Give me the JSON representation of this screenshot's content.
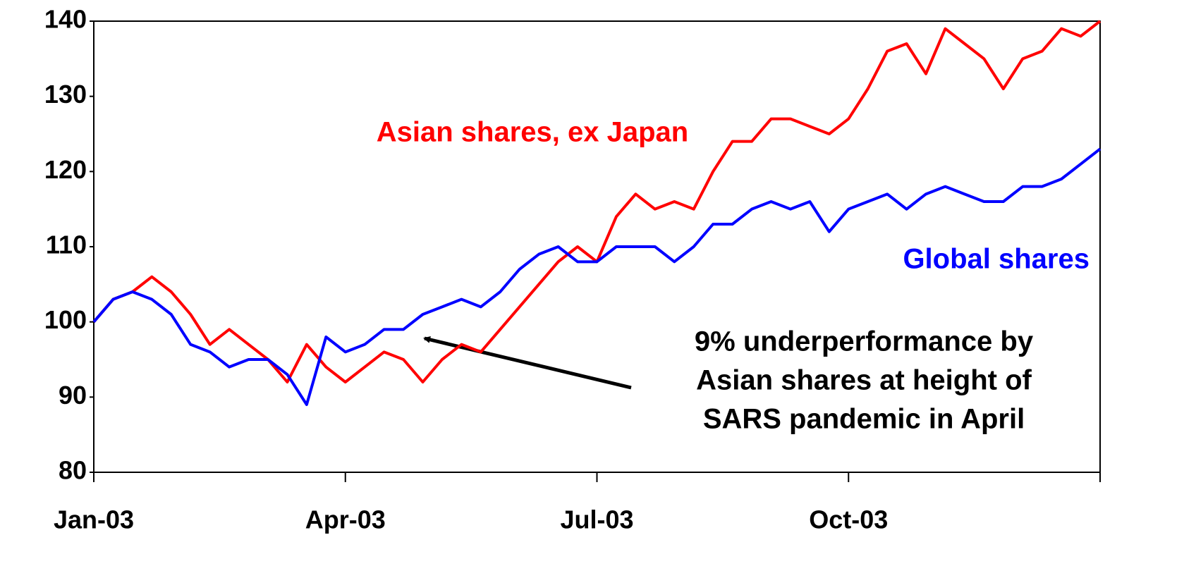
{
  "chart_data": {
    "type": "line",
    "categories": [
      "Jan-03",
      null,
      null,
      null,
      null,
      null,
      null,
      null,
      null,
      null,
      null,
      null,
      null,
      "Apr-03",
      null,
      null,
      null,
      null,
      null,
      null,
      null,
      null,
      null,
      null,
      null,
      null,
      "Jul-03",
      null,
      null,
      null,
      null,
      null,
      null,
      null,
      null,
      null,
      null,
      null,
      null,
      "Oct-03",
      null,
      null,
      null,
      null,
      null,
      null,
      null,
      null,
      null,
      null,
      null,
      null,
      null
    ],
    "series": [
      {
        "name": "Asian shares, ex Japan",
        "color": "#ff0000",
        "values": [
          100,
          103,
          104,
          106,
          104,
          101,
          97,
          99,
          97,
          95,
          92,
          97,
          94,
          92,
          94,
          96,
          95,
          92,
          95,
          97,
          96,
          99,
          102,
          105,
          108,
          110,
          108,
          114,
          117,
          115,
          116,
          115,
          120,
          124,
          124,
          127,
          127,
          126,
          125,
          127,
          131,
          136,
          137,
          133,
          139,
          137,
          135,
          131,
          135,
          136,
          139,
          138,
          140
        ]
      },
      {
        "name": "Global shares",
        "color": "#0000ff",
        "values": [
          100,
          103,
          104,
          103,
          101,
          97,
          96,
          94,
          95,
          95,
          93,
          89,
          98,
          96,
          97,
          99,
          99,
          101,
          102,
          103,
          102,
          104,
          107,
          109,
          110,
          108,
          108,
          110,
          110,
          110,
          108,
          110,
          113,
          113,
          115,
          116,
          115,
          116,
          112,
          115,
          116,
          117,
          115,
          117,
          118,
          117,
          116,
          116,
          118,
          118,
          119,
          121,
          123
        ]
      }
    ],
    "ylim": [
      80,
      140
    ],
    "yticks": [
      80,
      90,
      100,
      110,
      120,
      130,
      140
    ],
    "annotation": [
      "9% underperformance by",
      "Asian shares at height of",
      "SARS pandemic in April"
    ]
  }
}
